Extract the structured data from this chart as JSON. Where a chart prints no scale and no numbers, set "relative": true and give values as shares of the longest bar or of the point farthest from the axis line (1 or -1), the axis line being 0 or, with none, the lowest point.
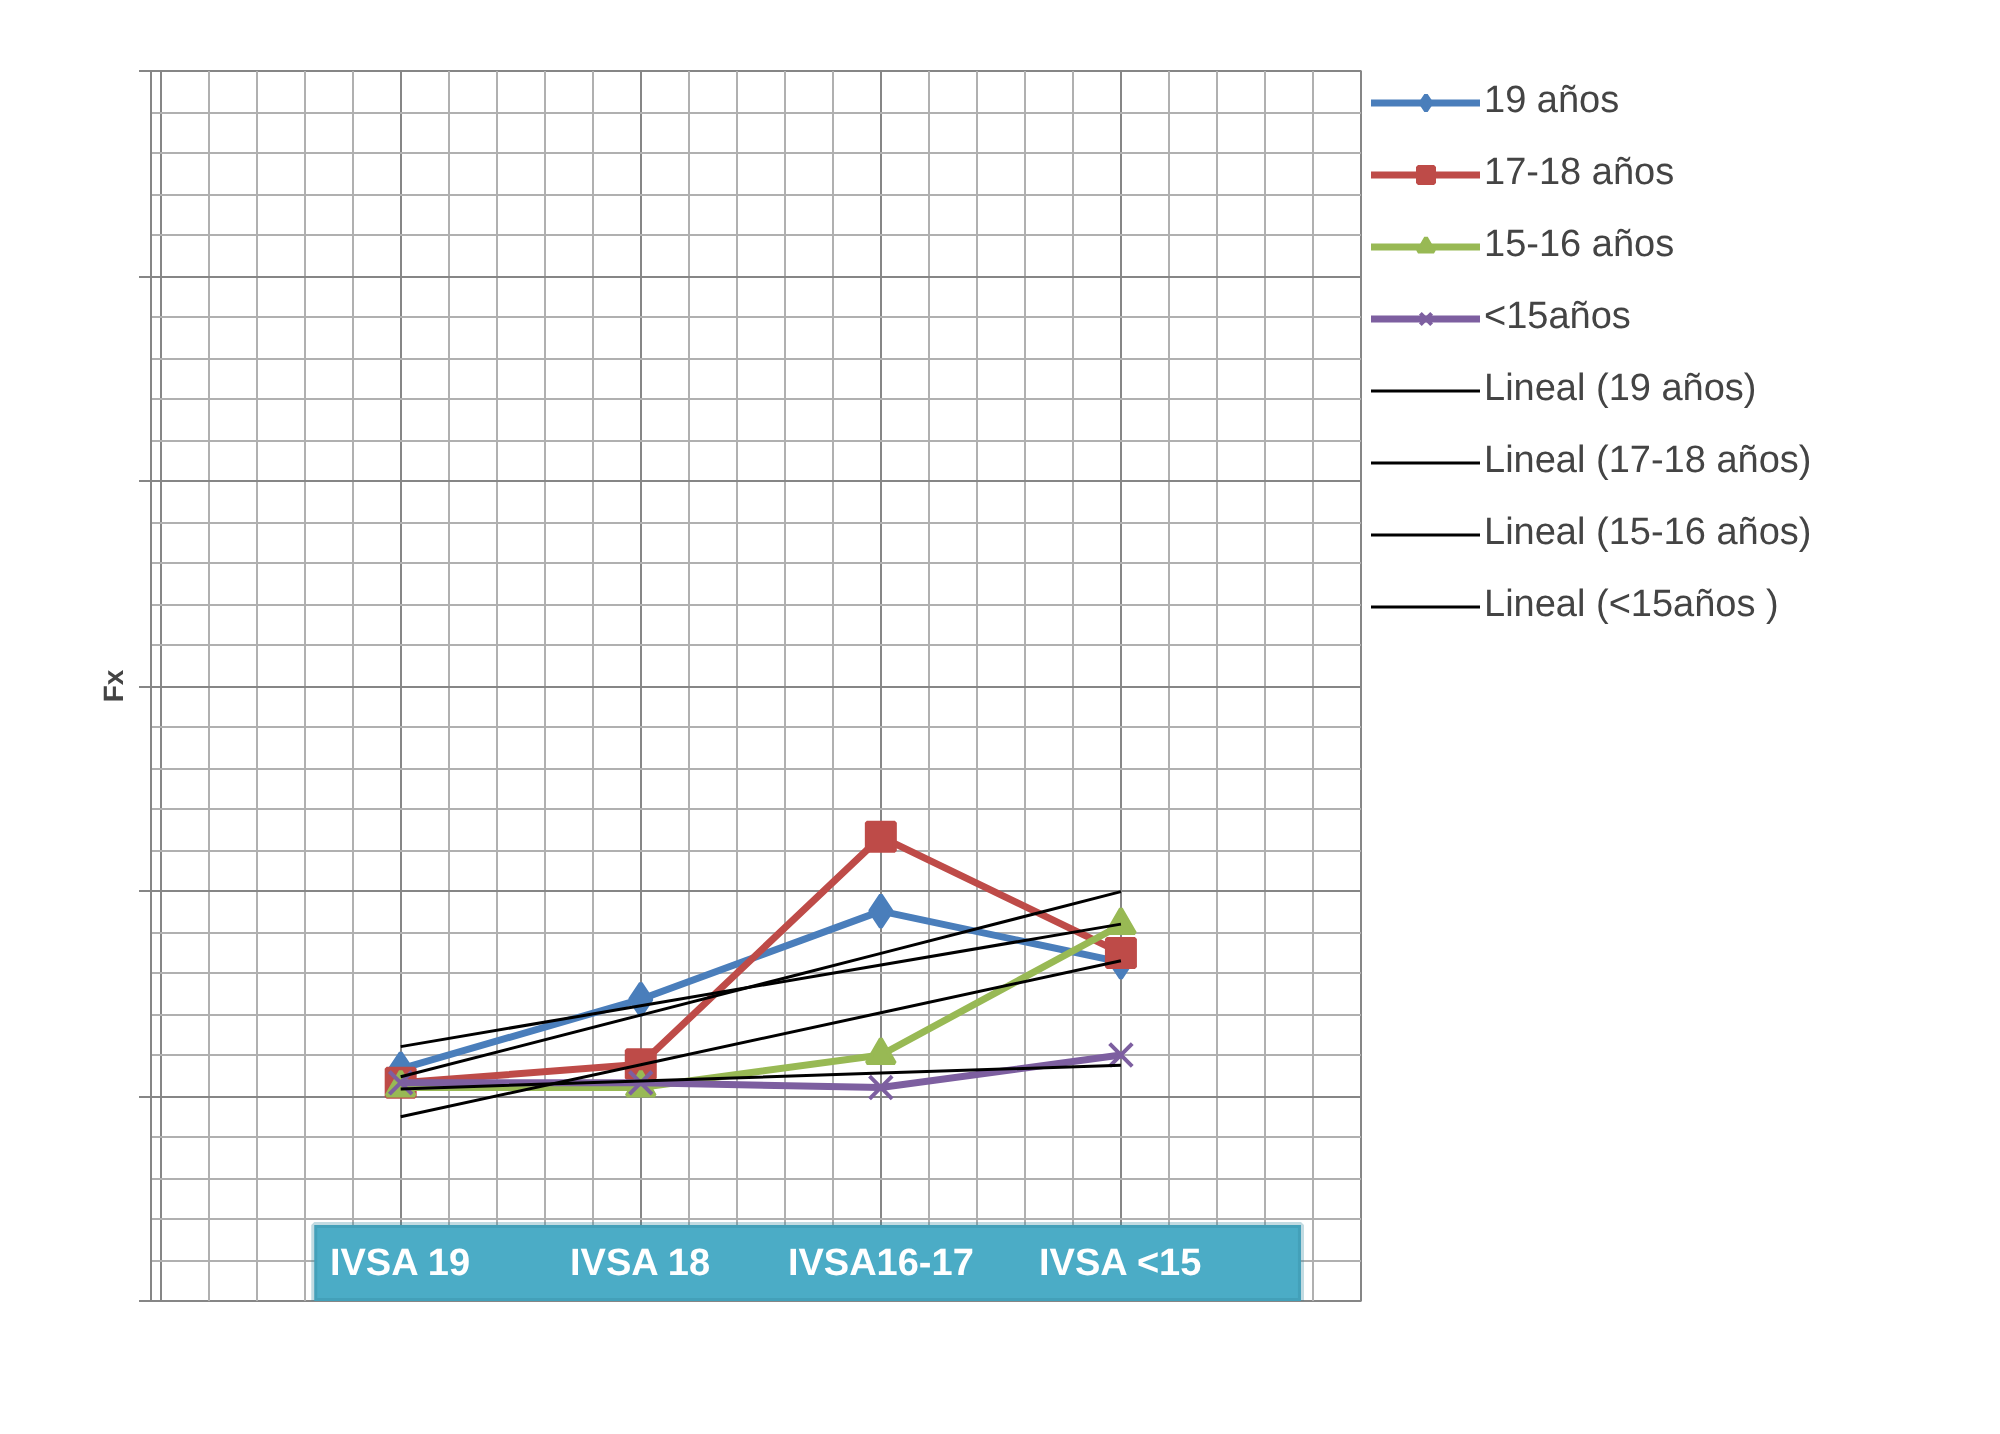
{
  "chart_data": {
    "type": "line",
    "relative": true,
    "ylabel": "Fx",
    "categories": [
      "IVSA 19",
      "IVSA 18",
      "IVSA16-17",
      "IVSA <15"
    ],
    "grid": true,
    "legend": "right",
    "tick_labels": "x",
    "series": [
      {
        "name": "19 años",
        "color": "#4a7ebb",
        "marker": "diamond",
        "values": [
          0.5,
          0.65,
          0.84,
          0.73
        ]
      },
      {
        "name": "17-18 años",
        "color": "#be4b48",
        "marker": "square",
        "values": [
          0.47,
          0.51,
          1.0,
          0.75
        ]
      },
      {
        "name": "15-16 años",
        "color": "#98b954",
        "marker": "triangle",
        "values": [
          0.46,
          0.46,
          0.53,
          0.81
        ]
      },
      {
        "name": "<15años",
        "color": "#7d5fa0",
        "marker": "cross",
        "values": [
          0.47,
          0.47,
          0.46,
          0.53
        ]
      },
      {
        "name": "Lineal (19 años)",
        "type": "line",
        "color": "#000000",
        "marker": "none",
        "values": [
          0.548,
          0.636,
          0.724,
          0.812
        ]
      },
      {
        "name": "Lineal (17-18 años)",
        "type": "line",
        "color": "#000000",
        "marker": "none",
        "values": [
          0.483,
          0.616,
          0.749,
          0.882
        ]
      },
      {
        "name": "Lineal (15-16 años)",
        "type": "line",
        "color": "#000000",
        "marker": "none",
        "values": [
          0.397,
          0.509,
          0.621,
          0.733
        ]
      },
      {
        "name": "Lineal (<15años )",
        "type": "line",
        "color": "#000000",
        "marker": "none",
        "values": [
          0.457,
          0.474,
          0.491,
          0.508
        ]
      }
    ]
  }
}
